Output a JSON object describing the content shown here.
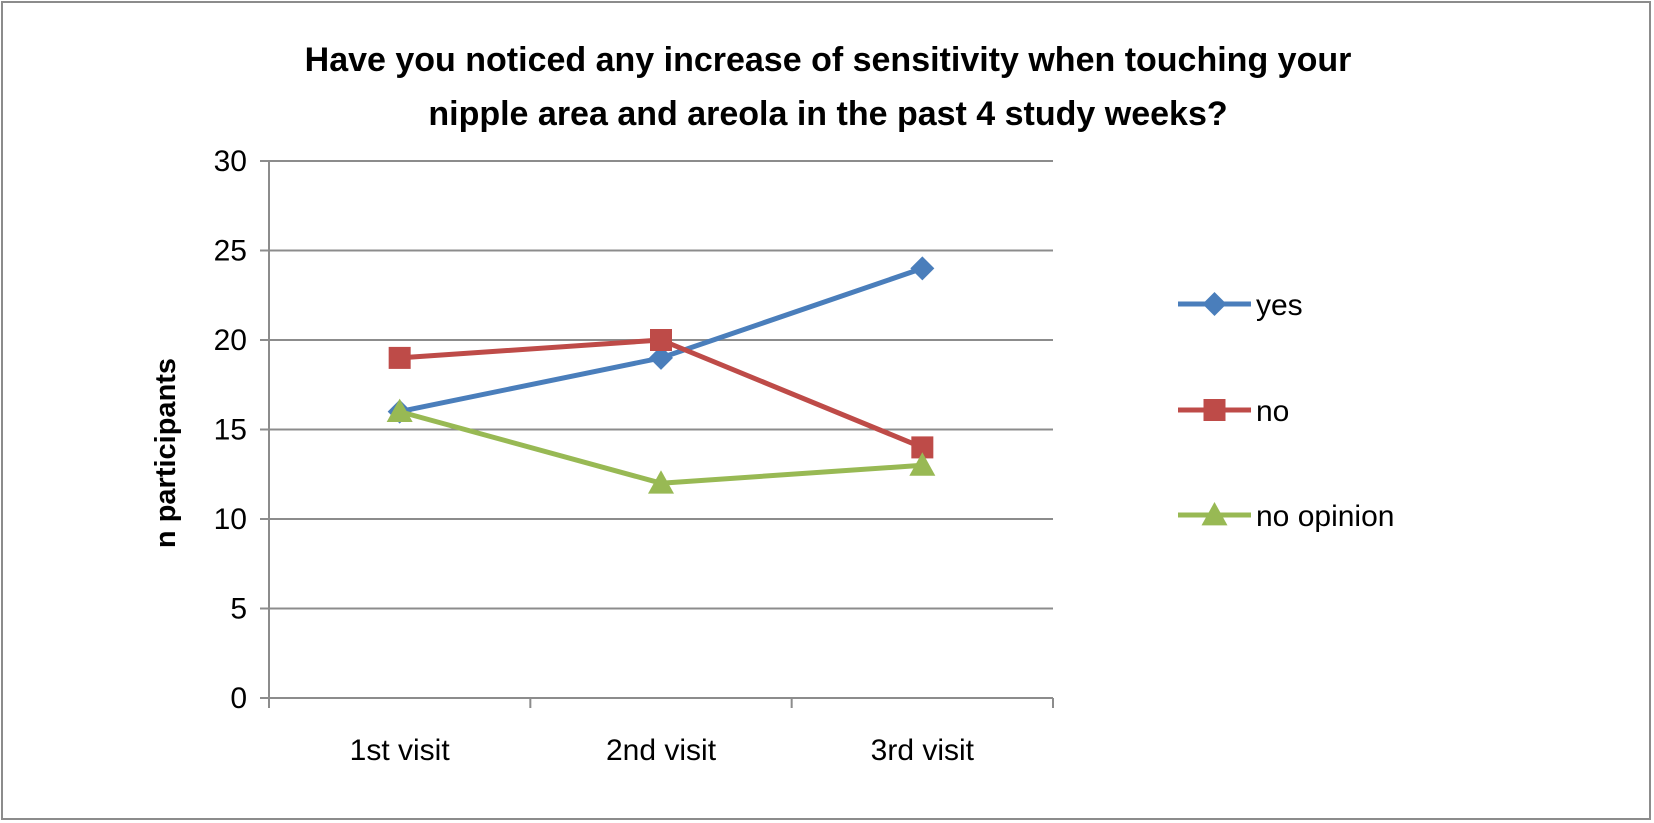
{
  "chart_data": {
    "type": "line",
    "title_lines": [
      "Have you noticed any increase of sensitivity when touching your",
      "nipple area and areola in the past 4 study weeks?"
    ],
    "xlabel": "",
    "ylabel": "n participants",
    "categories": [
      "1st visit",
      "2nd visit",
      "3rd visit"
    ],
    "ylim": [
      0,
      30
    ],
    "yticks": [
      0,
      5,
      10,
      15,
      20,
      25,
      30
    ],
    "grid": true,
    "legend_position": "right",
    "series": [
      {
        "name": "yes",
        "values": [
          16,
          19,
          24
        ],
        "color": "#4a7ebb",
        "marker": "diamond"
      },
      {
        "name": "no",
        "values": [
          19,
          20,
          14
        ],
        "color": "#be4b48",
        "marker": "square"
      },
      {
        "name": "no opinion",
        "values": [
          16,
          12,
          13
        ],
        "color": "#98b954",
        "marker": "triangle"
      }
    ]
  }
}
